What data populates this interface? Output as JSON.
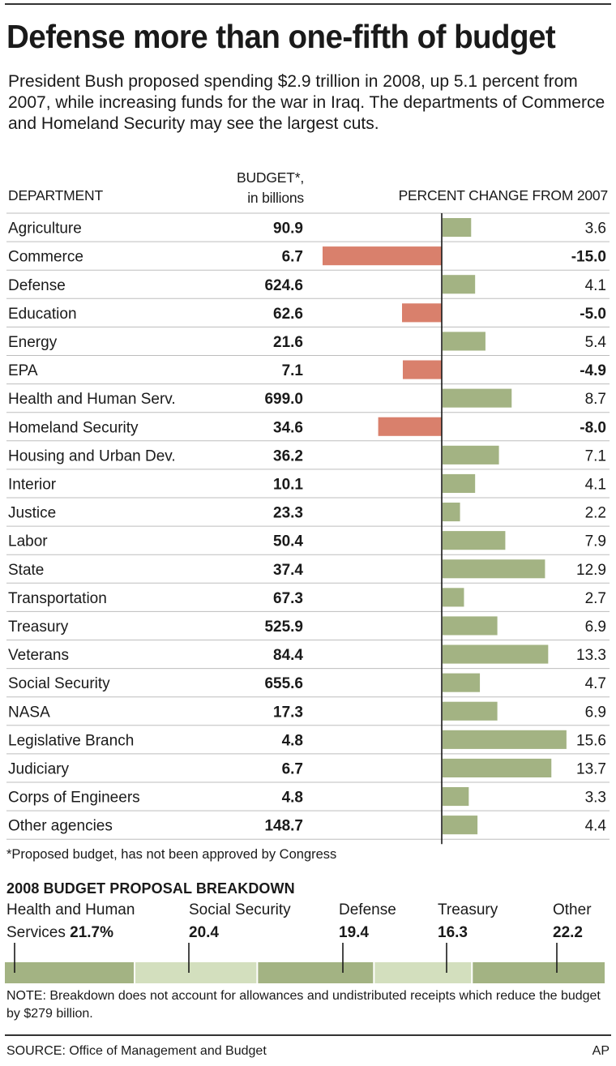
{
  "title": "Defense more than one-fifth of budget",
  "intro": "President Bush proposed spending $2.9 trillion in 2008, up 5.1 percent from 2007, while increasing funds for the war in Iraq. The departments of Commerce and Homeland Security may see the largest cuts.",
  "headers": {
    "department": "DEPARTMENT",
    "budget_line1": "BUDGET*,",
    "budget_line2": "in billions",
    "percent_change": "PERCENT CHANGE FROM 2007"
  },
  "chart_data": {
    "type": "bar",
    "orientation": "horizontal",
    "categories": [
      "Agriculture",
      "Commerce",
      "Defense",
      "Education",
      "Energy",
      "EPA",
      "Health and Human Serv.",
      "Homeland Security",
      "Housing and Urban Dev.",
      "Interior",
      "Justice",
      "Labor",
      "State",
      "Transportation",
      "Treasury",
      "Veterans",
      "Social Security",
      "NASA",
      "Legislative Branch",
      "Judiciary",
      "Corps of Engineers",
      "Other agencies"
    ],
    "budget": [
      "90.9",
      "6.7",
      "624.6",
      "62.6",
      "21.6",
      "7.1",
      "699.0",
      "34.6",
      "36.2",
      "10.1",
      "23.3",
      "50.4",
      "37.4",
      "67.3",
      "525.9",
      "84.4",
      "655.6",
      "17.3",
      "4.8",
      "6.7",
      "4.8",
      "148.7"
    ],
    "values": [
      3.6,
      -15.0,
      4.1,
      -5.0,
      5.4,
      -4.9,
      8.7,
      -8.0,
      7.1,
      4.1,
      2.2,
      7.9,
      12.9,
      2.7,
      6.9,
      13.3,
      4.7,
      6.9,
      15.6,
      13.7,
      3.3,
      4.4
    ],
    "value_labels": [
      "3.6",
      "-15.0",
      "4.1",
      "-5.0",
      "5.4",
      "-4.9",
      "8.7",
      "-8.0",
      "7.1",
      "4.1",
      "2.2",
      "7.9",
      "12.9",
      "2.7",
      "6.9",
      "13.3",
      "4.7",
      "6.9",
      "15.6",
      "13.7",
      "3.3",
      "4.4"
    ],
    "colors": {
      "positive": "#a3b383",
      "negative": "#d9806c"
    }
  },
  "footnote": "*Proposed budget, has not been approved by Congress",
  "breakdown": {
    "title": "2008 BUDGET PROPOSAL BREAKDOWN",
    "segments": [
      {
        "line1": "Health and Human",
        "line2_prefix": "Services ",
        "value": "21.7%",
        "share": 21.7,
        "color": "#a3b383"
      },
      {
        "line1": "Social Security",
        "line2_prefix": "",
        "value": "20.4",
        "share": 20.4,
        "color": "#d3dfbe"
      },
      {
        "line1": "Defense",
        "line2_prefix": "",
        "value": "19.4",
        "share": 19.4,
        "color": "#a3b383"
      },
      {
        "line1": "Treasury",
        "line2_prefix": "",
        "value": "16.3",
        "share": 16.3,
        "color": "#d3dfbe"
      },
      {
        "line1": "Other",
        "line2_prefix": "",
        "value": "22.2",
        "share": 22.2,
        "color": "#a3b383"
      }
    ]
  },
  "note": "NOTE: Breakdown does not account for allowances and undistributed receipts which reduce the budget by $279 billion.",
  "source": "SOURCE: Office of Management and Budget",
  "credit": "AP"
}
